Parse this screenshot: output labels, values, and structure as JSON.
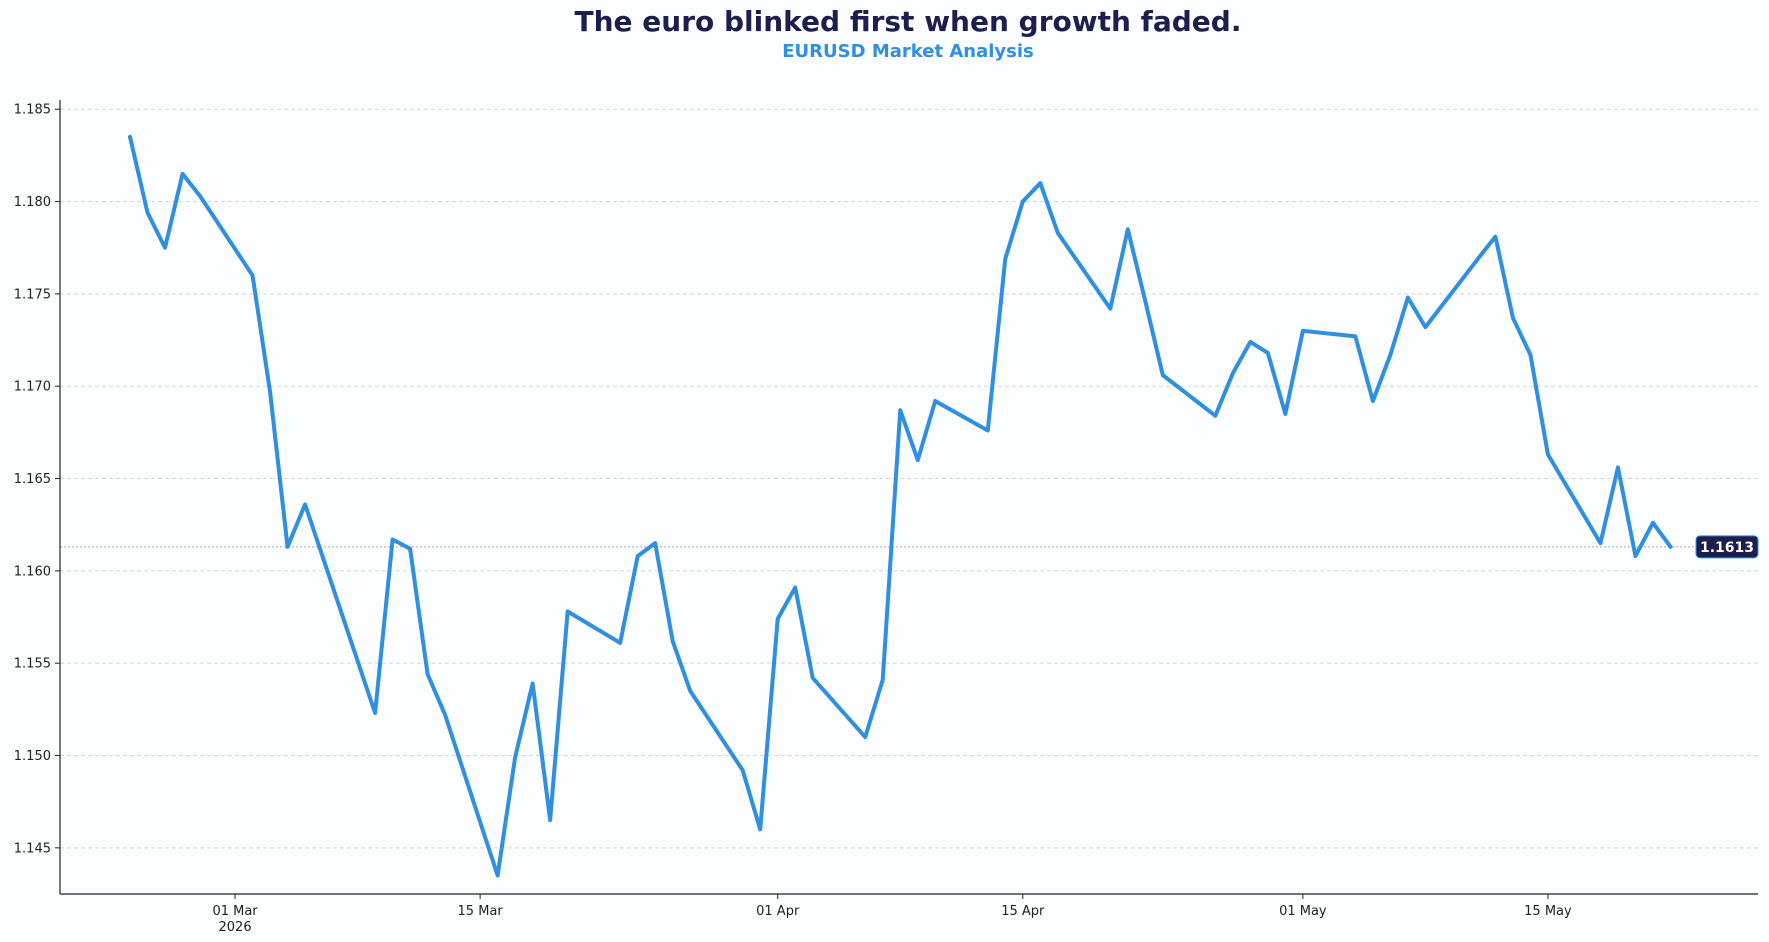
{
  "chart_data": {
    "type": "line",
    "title": "The euro blinked first when growth faded.",
    "subtitle": "EURUSD Market Analysis",
    "xlabel": "",
    "ylabel": "",
    "ylim": [
      1.1425,
      1.1855
    ],
    "xlim": [
      "2026-02-19",
      "2026-05-27"
    ],
    "grid": "horizontal dashed",
    "yticks": [
      1.145,
      1.15,
      1.155,
      1.16,
      1.165,
      1.17,
      1.175,
      1.18,
      1.185
    ],
    "ytick_labels": [
      "1.145",
      "1.150",
      "1.155",
      "1.160",
      "1.165",
      "1.170",
      "1.175",
      "1.180",
      "1.185"
    ],
    "xticks": [
      {
        "date": "2026-03-01",
        "label": "01 Mar",
        "sublabel": "2026"
      },
      {
        "date": "2026-03-15",
        "label": "15 Mar",
        "sublabel": ""
      },
      {
        "date": "2026-04-01",
        "label": "01 Apr",
        "sublabel": ""
      },
      {
        "date": "2026-04-15",
        "label": "15 Apr",
        "sublabel": ""
      },
      {
        "date": "2026-05-01",
        "label": "01 May",
        "sublabel": ""
      },
      {
        "date": "2026-05-15",
        "label": "15 May",
        "sublabel": ""
      }
    ],
    "last_value_label": "1.1613",
    "colors": {
      "series": "#2f8fe0",
      "title": "#1c1f4d",
      "subtitle": "#2f8fe0",
      "badge": "#1c1f4d"
    },
    "series": [
      {
        "name": "",
        "x": [
          "2026-02-23",
          "2026-02-24",
          "2026-02-25",
          "2026-02-26",
          "2026-02-27",
          "2026-03-02",
          "2026-03-03",
          "2026-03-04",
          "2026-03-05",
          "2026-03-09",
          "2026-03-10",
          "2026-03-11",
          "2026-03-12",
          "2026-03-13",
          "2026-03-16",
          "2026-03-17",
          "2026-03-18",
          "2026-03-19",
          "2026-03-20",
          "2026-03-23",
          "2026-03-24",
          "2026-03-25",
          "2026-03-26",
          "2026-03-27",
          "2026-03-30",
          "2026-03-31",
          "2026-04-01",
          "2026-04-02",
          "2026-04-03",
          "2026-04-06",
          "2026-04-07",
          "2026-04-08",
          "2026-04-09",
          "2026-04-10",
          "2026-04-13",
          "2026-04-14",
          "2026-04-15",
          "2026-04-16",
          "2026-04-17",
          "2026-04-20",
          "2026-04-21",
          "2026-04-22",
          "2026-04-23",
          "2026-04-26",
          "2026-04-27",
          "2026-04-28",
          "2026-04-29",
          "2026-04-30",
          "2026-05-01",
          "2026-05-04",
          "2026-05-05",
          "2026-05-06",
          "2026-05-07",
          "2026-05-08",
          "2026-05-11",
          "2026-05-12",
          "2026-05-13",
          "2026-05-14",
          "2026-05-15",
          "2026-05-18",
          "2026-05-19",
          "2026-05-20",
          "2026-05-21",
          "2026-05-22"
        ],
        "y": [
          1.1835,
          1.1794,
          1.1775,
          1.1815,
          1.1803,
          1.176,
          1.1697,
          1.1613,
          1.1636,
          1.1523,
          1.1617,
          1.1612,
          1.1544,
          1.1522,
          1.1435,
          1.1499,
          1.1539,
          1.1465,
          1.1578,
          1.1561,
          1.1608,
          1.1615,
          1.1562,
          1.1535,
          1.1492,
          1.146,
          1.1574,
          1.1591,
          1.1542,
          1.151,
          1.1541,
          1.1687,
          1.166,
          1.1692,
          1.1676,
          1.1769,
          1.18,
          1.181,
          1.1783,
          1.1742,
          1.1785,
          1.1746,
          1.1706,
          1.1684,
          1.1707,
          1.1724,
          1.1718,
          1.1685,
          1.173,
          1.1727,
          1.1692,
          1.1717,
          1.1748,
          1.1732,
          1.1769,
          1.1781,
          1.1737,
          1.1717,
          1.1663,
          1.1615,
          1.1656,
          1.1608,
          1.1626,
          1.1613
        ]
      }
    ]
  }
}
